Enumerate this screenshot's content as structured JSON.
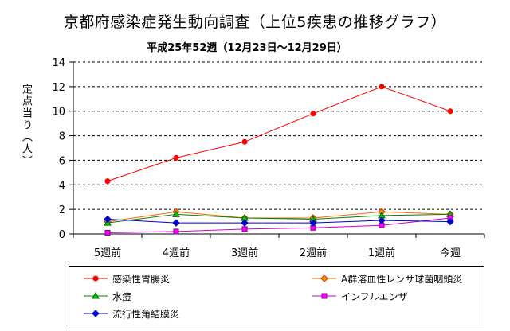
{
  "chart_data": {
    "type": "line",
    "title": "京都府感染症発生動向調査（上位5疾患の推移グラフ）",
    "subtitle": "平成25年52週（12月23日～12月29日）",
    "ylabel": "定点当り（人）",
    "xlabel": "",
    "categories": [
      "5週前",
      "4週前",
      "3週前",
      "2週前",
      "1週前",
      "今週"
    ],
    "ylim": [
      0,
      14
    ],
    "yticks": [
      "0",
      "2",
      "4",
      "6",
      "8",
      "10",
      "12",
      "14"
    ],
    "grid": true,
    "legend_position": "bottom",
    "series": [
      {
        "name": "感染性胃腸炎",
        "values": [
          4.3,
          6.2,
          7.5,
          9.8,
          12.0,
          10.0
        ],
        "color": "#ff0000",
        "marker": "circle"
      },
      {
        "name": "A群溶血性レンサ球菌咽頭炎",
        "values": [
          1.0,
          1.8,
          1.3,
          1.3,
          1.8,
          1.6
        ],
        "color": "#ff6600",
        "marker": "diamond"
      },
      {
        "name": "水痘",
        "values": [
          0.9,
          1.6,
          1.3,
          1.2,
          1.5,
          1.6
        ],
        "color": "#008000",
        "marker": "triangle"
      },
      {
        "name": "インフルエンザ",
        "values": [
          0.1,
          0.2,
          0.4,
          0.5,
          0.7,
          1.3
        ],
        "color": "#cc00cc",
        "marker": "square"
      },
      {
        "name": "流行性角結膜炎",
        "values": [
          1.2,
          0.9,
          0.9,
          0.9,
          1.1,
          1.0
        ],
        "color": "#0000cc",
        "marker": "diamond"
      }
    ]
  }
}
